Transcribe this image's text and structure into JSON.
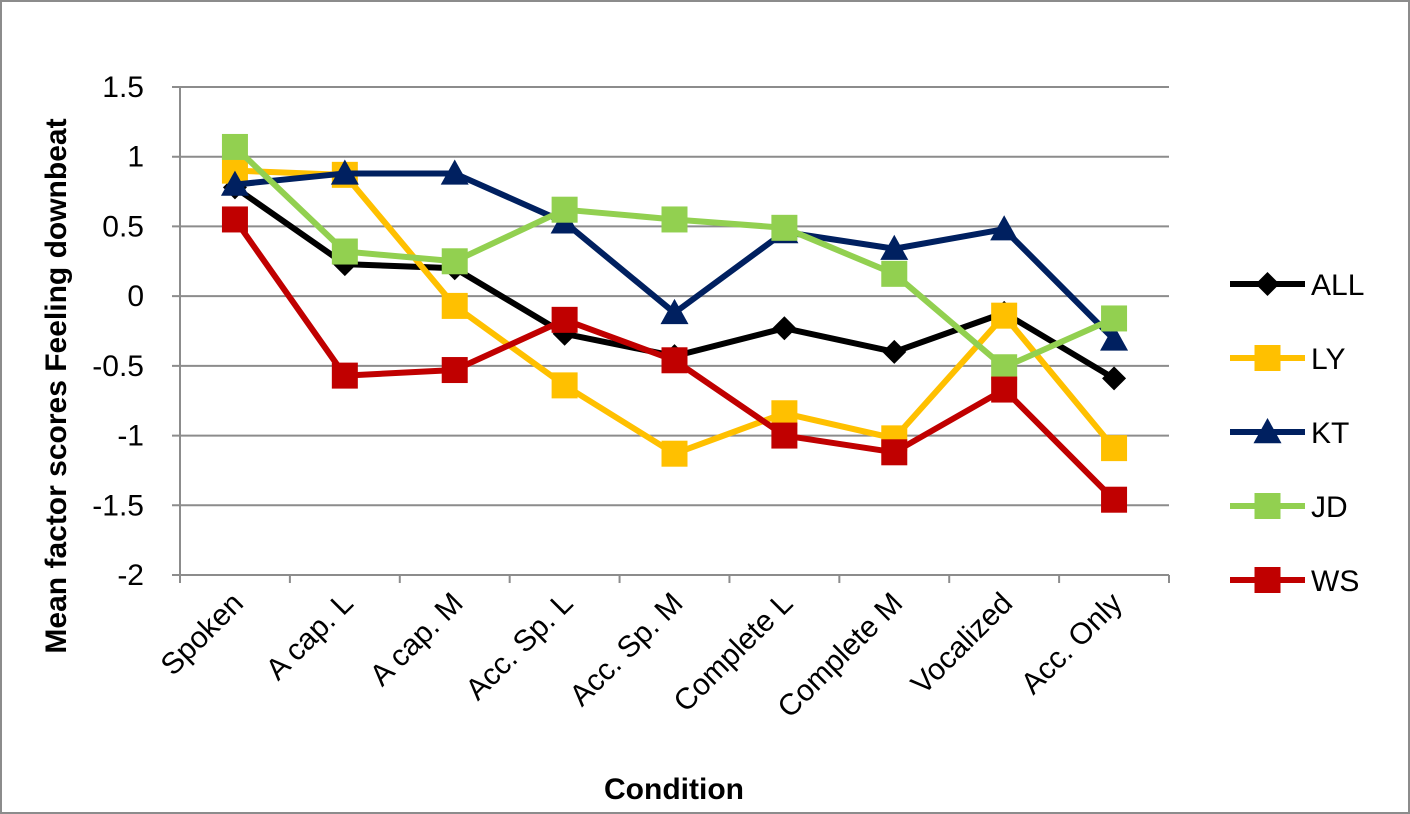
{
  "chart_data": {
    "type": "line",
    "title": "",
    "xlabel": "Condition",
    "ylabel": "Mean factor scores Feeling downbeat",
    "ylim": [
      -2,
      1.5
    ],
    "yticks": [
      1.5,
      1,
      0.5,
      0,
      -0.5,
      -1,
      -1.5,
      -2
    ],
    "ytick_labels": [
      "1.5",
      "1",
      "0.5",
      "0",
      "-0.5",
      "-1",
      "-1.5",
      "-2"
    ],
    "categories": [
      "Spoken",
      "A cap. L",
      "A cap. M",
      "Acc. Sp. L",
      "Acc. Sp. M",
      "Complete L",
      "Complete M",
      "Vocalized",
      "Acc. Only"
    ],
    "grid": true,
    "legend_position": "right",
    "series": [
      {
        "name": "ALL",
        "color": "#000000",
        "marker": "diamond",
        "values": [
          0.78,
          0.23,
          0.2,
          -0.27,
          -0.43,
          -0.23,
          -0.4,
          -0.12,
          -0.59
        ]
      },
      {
        "name": "LY",
        "color": "#ffc000",
        "marker": "square",
        "values": [
          0.9,
          0.87,
          -0.07,
          -0.64,
          -1.13,
          -0.84,
          -1.02,
          -0.14,
          -1.09
        ]
      },
      {
        "name": "KT",
        "color": "#002060",
        "marker": "triangle",
        "values": [
          0.8,
          0.88,
          0.88,
          0.53,
          -0.12,
          0.46,
          0.34,
          0.48,
          -0.31
        ]
      },
      {
        "name": "JD",
        "color": "#92d050",
        "marker": "square",
        "values": [
          1.07,
          0.32,
          0.25,
          0.62,
          0.55,
          0.49,
          0.16,
          -0.51,
          -0.16
        ]
      },
      {
        "name": "WS",
        "color": "#c00000",
        "marker": "square",
        "values": [
          0.55,
          -0.57,
          -0.53,
          -0.17,
          -0.46,
          -1.0,
          -1.12,
          -0.67,
          -1.46
        ]
      }
    ]
  }
}
